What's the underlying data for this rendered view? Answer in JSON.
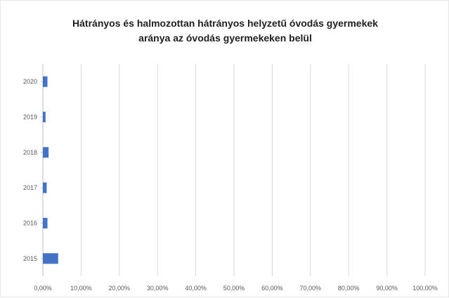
{
  "chart_data": {
    "type": "bar",
    "orientation": "horizontal",
    "title_lines": [
      "Hátrányos és halmozottan hátrányos helyzetű óvodás gyermekek",
      "aránya az óvodás gyermekeken belül"
    ],
    "categories": [
      "2020",
      "2019",
      "2018",
      "2017",
      "2016",
      "2015"
    ],
    "values": [
      1.2,
      0.7,
      1.5,
      1.0,
      1.2,
      4.0
    ],
    "xlim": [
      0,
      100
    ],
    "x_ticks": [
      "0,00%",
      "10,00%",
      "20,00%",
      "30,00%",
      "40,00%",
      "50,00%",
      "60,00%",
      "70,00%",
      "80,00%",
      "90,00%",
      "100,00%"
    ],
    "grid": true,
    "legend": "none",
    "bar_color": "#4472c4",
    "grid_color": "#d9d9d9"
  }
}
